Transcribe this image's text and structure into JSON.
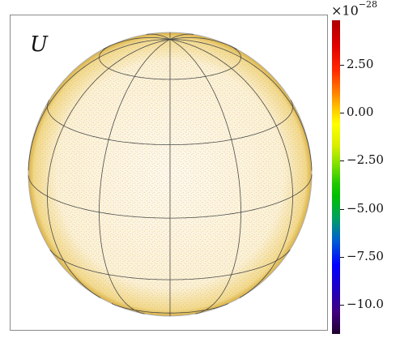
{
  "plot": {
    "variable_label": "U",
    "colorbar": {
      "scale_base": "×10",
      "scale_exponent": "−28",
      "ticks": [
        {
          "value": 2.5,
          "label": "2.50"
        },
        {
          "value": 0.0,
          "label": "0.00"
        },
        {
          "value": -2.5,
          "label": "−2.50"
        },
        {
          "value": -5.0,
          "label": "−5.00"
        },
        {
          "value": -7.5,
          "label": "−7.50"
        },
        {
          "value": -10.0,
          "label": "−10.0"
        }
      ],
      "range": [
        -11.5,
        4.8
      ],
      "colormap": "rainbow"
    },
    "sphere": {
      "fill_color": "#fbf3dc",
      "grid_color": "#555555",
      "meridians": 12,
      "parallels": 5
    }
  }
}
